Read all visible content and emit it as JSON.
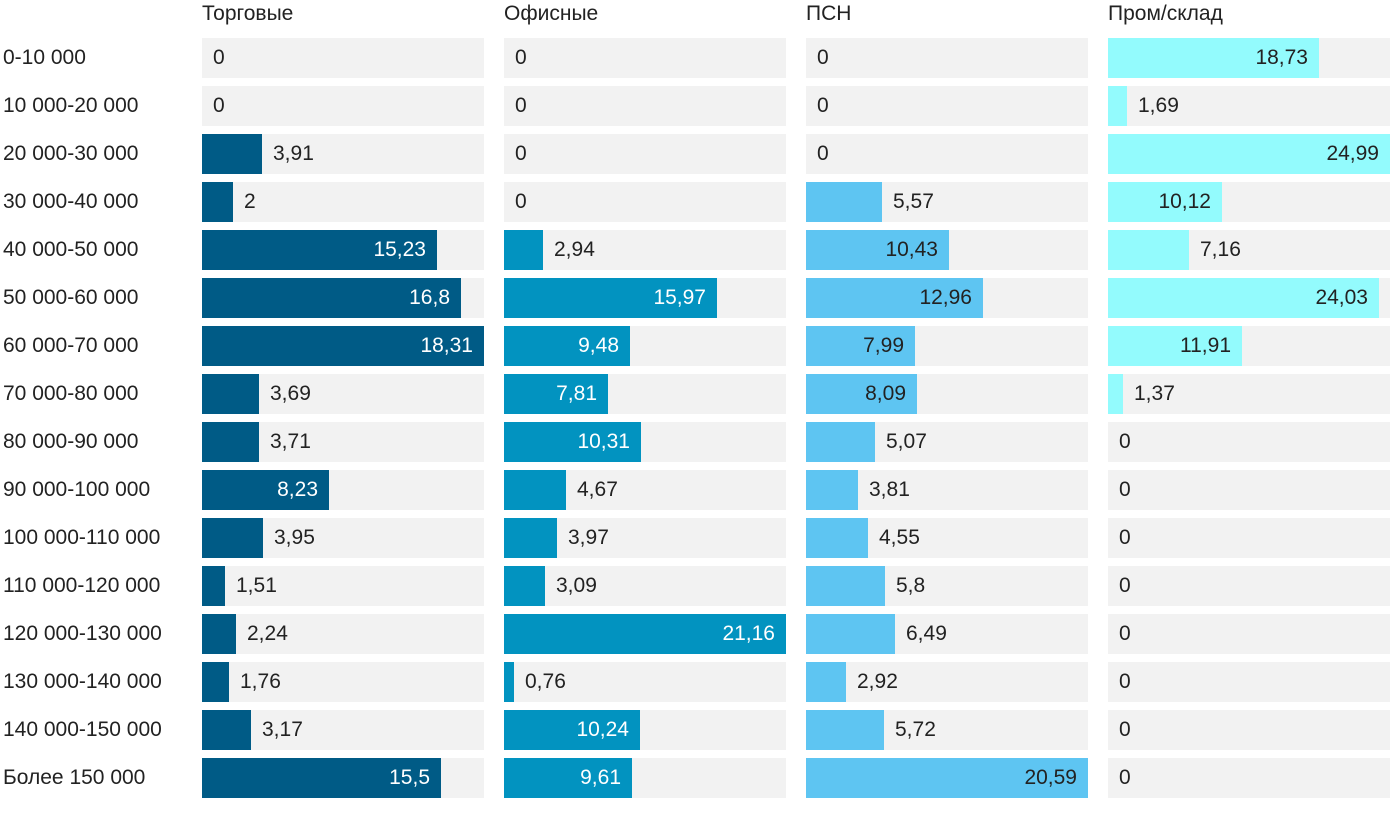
{
  "chart_data": {
    "type": "bar",
    "orientation": "horizontal",
    "layout": "small-multiples",
    "categories": [
      "0-10 000",
      "10 000-20 000",
      "20 000-30 000",
      "30 000-40 000",
      "40 000-50 000",
      "50 000-60 000",
      "60 000-70 000",
      "70 000-80 000",
      "80 000-90 000",
      "90 000-100 000",
      "100 000-110 000",
      "110 000-120 000",
      "120 000-130 000",
      "130 000-140 000",
      "140 000-150 000",
      "Более 150 000"
    ],
    "series": [
      {
        "name": "Торговые",
        "color": "#005b86",
        "label_color_inside": "#ffffff",
        "values": [
          0,
          0,
          3.91,
          2,
          15.23,
          16.8,
          18.31,
          3.69,
          3.71,
          8.23,
          3.95,
          1.51,
          2.24,
          1.76,
          3.17,
          15.5
        ],
        "value_labels": [
          "0",
          "0",
          "3,91",
          "2",
          "15,23",
          "16,8",
          "18,31",
          "3,69",
          "3,71",
          "8,23",
          "3,95",
          "1,51",
          "2,24",
          "1,76",
          "3,17",
          "15,5"
        ]
      },
      {
        "name": "Офисные",
        "color": "#0293c0",
        "label_color_inside": "#ffffff",
        "values": [
          0,
          0,
          0,
          0,
          2.94,
          15.97,
          9.48,
          7.81,
          10.31,
          4.67,
          3.97,
          3.09,
          21.16,
          0.76,
          10.24,
          9.61
        ],
        "value_labels": [
          "0",
          "0",
          "0",
          "0",
          "2,94",
          "15,97",
          "9,48",
          "7,81",
          "10,31",
          "4,67",
          "3,97",
          "3,09",
          "21,16",
          "0,76",
          "10,24",
          "9,61"
        ]
      },
      {
        "name": "ПСН",
        "color": "#5ec5f2",
        "label_color_inside": "#222222",
        "values": [
          0,
          0,
          0,
          5.57,
          10.43,
          12.96,
          7.99,
          8.09,
          5.07,
          3.81,
          4.55,
          5.8,
          6.49,
          2.92,
          5.72,
          20.59
        ],
        "value_labels": [
          "0",
          "0",
          "0",
          "5,57",
          "10,43",
          "12,96",
          "7,99",
          "8,09",
          "5,07",
          "3,81",
          "4,55",
          "5,8",
          "6,49",
          "2,92",
          "5,72",
          "20,59"
        ]
      },
      {
        "name": "Пром/склад",
        "color": "#93fbfd",
        "label_color_inside": "#222222",
        "values": [
          18.73,
          1.69,
          24.99,
          10.12,
          7.16,
          24.03,
          11.91,
          1.37,
          0,
          0,
          0,
          0,
          0,
          0,
          0,
          0
        ],
        "value_labels": [
          "18,73",
          "1,69",
          "24,99",
          "10,12",
          "7,16",
          "24,03",
          "11,91",
          "1,37",
          "0",
          "0",
          "0",
          "0",
          "0",
          "0",
          "0",
          "0"
        ]
      }
    ],
    "xlim": [
      [
        0,
        18.31
      ],
      [
        0,
        21.16
      ],
      [
        0,
        20.59
      ],
      [
        0,
        24.99
      ]
    ],
    "grid": false,
    "legend": "none"
  }
}
